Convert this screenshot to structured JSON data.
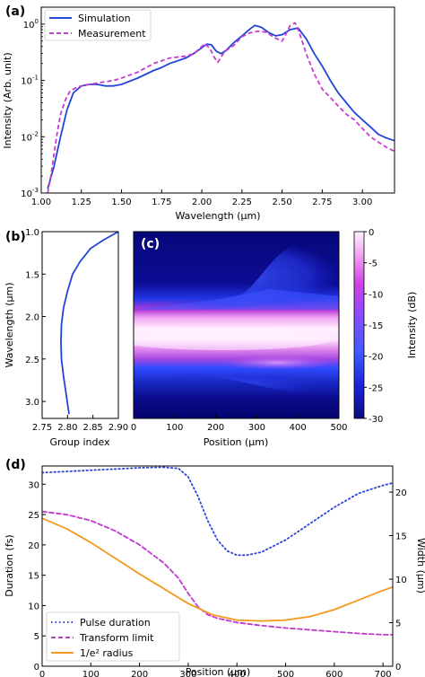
{
  "colors": {
    "simulation": "#2145d6",
    "measurement": "#c93ad0",
    "pulse_duration": "#2b44d6",
    "transform_limit": "#c23acc",
    "radius": "#f39a1e"
  },
  "panels": {
    "a": {
      "label": "(a)"
    },
    "b": {
      "label": "(b)"
    },
    "c": {
      "label": "(c)"
    },
    "d": {
      "label": "(d)"
    }
  },
  "chart_data": [
    {
      "panel": "a",
      "type": "line",
      "xlabel": "Wavelength (µm)",
      "ylabel": "Intensity (Arb. unit)",
      "xlim": [
        1.0,
        3.2
      ],
      "ylim": [
        0.001,
        2
      ],
      "yscale": "log",
      "xticks": [
        "1.00",
        "1.25",
        "1.50",
        "1.75",
        "2.00",
        "2.25",
        "2.50",
        "2.75",
        "3.00"
      ],
      "yticks": [
        {
          "value": 0.001,
          "base": "10",
          "exp": "-3"
        },
        {
          "value": 0.01,
          "base": "10",
          "exp": "-2"
        },
        {
          "value": 0.1,
          "base": "10",
          "exp": "-1"
        },
        {
          "value": 1,
          "base": "10",
          "exp": "0"
        }
      ],
      "legend_position": "top-left",
      "series": [
        {
          "name": "Simulation",
          "style": "solid",
          "x": [
            1.04,
            1.08,
            1.12,
            1.16,
            1.2,
            1.25,
            1.3,
            1.35,
            1.4,
            1.45,
            1.5,
            1.6,
            1.7,
            1.75,
            1.8,
            1.9,
            1.95,
            2.0,
            2.03,
            2.06,
            2.09,
            2.12,
            2.15,
            2.2,
            2.25,
            2.3,
            2.33,
            2.37,
            2.42,
            2.46,
            2.5,
            2.55,
            2.6,
            2.65,
            2.7,
            2.75,
            2.8,
            2.85,
            2.9,
            2.95,
            3.0,
            3.05,
            3.1,
            3.15,
            3.2
          ],
          "y": [
            0.0012,
            0.003,
            0.01,
            0.03,
            0.06,
            0.08,
            0.085,
            0.085,
            0.08,
            0.08,
            0.085,
            0.11,
            0.15,
            0.17,
            0.2,
            0.25,
            0.3,
            0.38,
            0.44,
            0.43,
            0.33,
            0.3,
            0.34,
            0.47,
            0.62,
            0.82,
            0.95,
            0.88,
            0.7,
            0.62,
            0.65,
            0.8,
            0.85,
            0.55,
            0.3,
            0.18,
            0.1,
            0.06,
            0.04,
            0.027,
            0.02,
            0.015,
            0.011,
            0.0095,
            0.0085
          ]
        },
        {
          "name": "Measurement",
          "style": "dashed",
          "x": [
            1.04,
            1.06,
            1.08,
            1.1,
            1.12,
            1.15,
            1.18,
            1.22,
            1.25,
            1.3,
            1.35,
            1.4,
            1.45,
            1.5,
            1.6,
            1.7,
            1.8,
            1.9,
            1.95,
            2.0,
            2.02,
            2.05,
            2.08,
            2.1,
            2.12,
            2.14,
            2.17,
            2.2,
            2.25,
            2.3,
            2.35,
            2.4,
            2.45,
            2.5,
            2.52,
            2.55,
            2.58,
            2.6,
            2.62,
            2.65,
            2.7,
            2.75,
            2.8,
            2.85,
            2.9,
            2.95,
            3.0,
            3.05,
            3.1,
            3.15,
            3.2
          ],
          "y": [
            0.001,
            0.002,
            0.005,
            0.012,
            0.025,
            0.045,
            0.065,
            0.075,
            0.08,
            0.085,
            0.09,
            0.095,
            0.1,
            0.11,
            0.14,
            0.2,
            0.25,
            0.27,
            0.3,
            0.4,
            0.45,
            0.37,
            0.25,
            0.21,
            0.26,
            0.32,
            0.37,
            0.42,
            0.6,
            0.7,
            0.75,
            0.72,
            0.58,
            0.5,
            0.63,
            0.95,
            1.05,
            0.8,
            0.55,
            0.3,
            0.13,
            0.07,
            0.05,
            0.035,
            0.025,
            0.02,
            0.014,
            0.01,
            0.008,
            0.0065,
            0.0055
          ]
        }
      ]
    },
    {
      "panel": "b",
      "type": "line",
      "xlabel": "Group index",
      "ylabel": "Wavelength (µm)",
      "xlim": [
        2.75,
        2.9
      ],
      "ylim": [
        1.0,
        3.2
      ],
      "yaxis": "inverted",
      "xticks": [
        "2.75",
        "2.80",
        "2.85",
        "2.90"
      ],
      "yticks": [
        "1.0",
        "1.5",
        "2.0",
        "2.5",
        "3.0"
      ],
      "series": [
        {
          "x": [
            2.9,
            2.87,
            2.845,
            2.825,
            2.81,
            2.8,
            2.792,
            2.788,
            2.787,
            2.788,
            2.792,
            2.797,
            2.803
          ],
          "y": [
            1.0,
            1.1,
            1.2,
            1.35,
            1.5,
            1.7,
            1.9,
            2.1,
            2.3,
            2.5,
            2.7,
            2.9,
            3.15
          ]
        }
      ]
    },
    {
      "panel": "c",
      "type": "heatmap",
      "xlabel": "Position (µm)",
      "xlim": [
        0,
        500
      ],
      "ylim": [
        1.0,
        3.2
      ],
      "xticks": [
        "0",
        "100",
        "200",
        "300",
        "400",
        "500"
      ],
      "colorbar": {
        "label": "Intensity (dB)",
        "range": [
          -30,
          0
        ],
        "ticks": [
          "0",
          "-5",
          "-10",
          "-15",
          "-20",
          "-25",
          "-30"
        ]
      }
    },
    {
      "panel": "d",
      "type": "line",
      "xlabel": "Position (µm)",
      "ylabel": "Duration (fs)",
      "y2label": "Width (µm)",
      "xlim": [
        0,
        720
      ],
      "ylim": [
        0,
        33
      ],
      "y2lim": [
        0,
        23
      ],
      "xticks": [
        "0",
        "100",
        "200",
        "300",
        "400",
        "500",
        "600",
        "700"
      ],
      "yticks": [
        "0",
        "5",
        "10",
        "15",
        "20",
        "25",
        "30"
      ],
      "y2ticks": [
        "0",
        "5",
        "10",
        "15",
        "20"
      ],
      "legend_position": "bottom-left",
      "series": [
        {
          "name": "Pulse duration",
          "style": "dotted",
          "axis": "left",
          "x": [
            0,
            50,
            100,
            150,
            200,
            250,
            280,
            300,
            320,
            340,
            360,
            380,
            400,
            420,
            450,
            500,
            550,
            600,
            650,
            700,
            720
          ],
          "y": [
            31.9,
            32.1,
            32.3,
            32.5,
            32.7,
            32.8,
            32.6,
            31.2,
            28.0,
            24.0,
            20.8,
            19.0,
            18.3,
            18.3,
            18.8,
            20.8,
            23.5,
            26.2,
            28.5,
            29.8,
            30.2
          ]
        },
        {
          "name": "Transform limit",
          "style": "dashed",
          "axis": "left",
          "x": [
            0,
            50,
            100,
            150,
            200,
            250,
            280,
            300,
            320,
            340,
            360,
            400,
            450,
            500,
            550,
            600,
            650,
            700,
            720
          ],
          "y": [
            25.5,
            25.0,
            24.0,
            22.3,
            20.0,
            17.0,
            14.5,
            12.0,
            9.8,
            8.5,
            7.9,
            7.2,
            6.7,
            6.3,
            6.0,
            5.7,
            5.4,
            5.2,
            5.2
          ]
        },
        {
          "name": "1/e² radius",
          "style": "solid",
          "axis": "right",
          "x": [
            0,
            50,
            100,
            150,
            200,
            250,
            300,
            350,
            400,
            450,
            500,
            550,
            600,
            650,
            700,
            720
          ],
          "y": [
            17.0,
            15.8,
            14.2,
            12.4,
            10.6,
            8.9,
            7.2,
            5.9,
            5.3,
            5.2,
            5.3,
            5.7,
            6.5,
            7.6,
            8.7,
            9.1
          ]
        }
      ]
    }
  ]
}
